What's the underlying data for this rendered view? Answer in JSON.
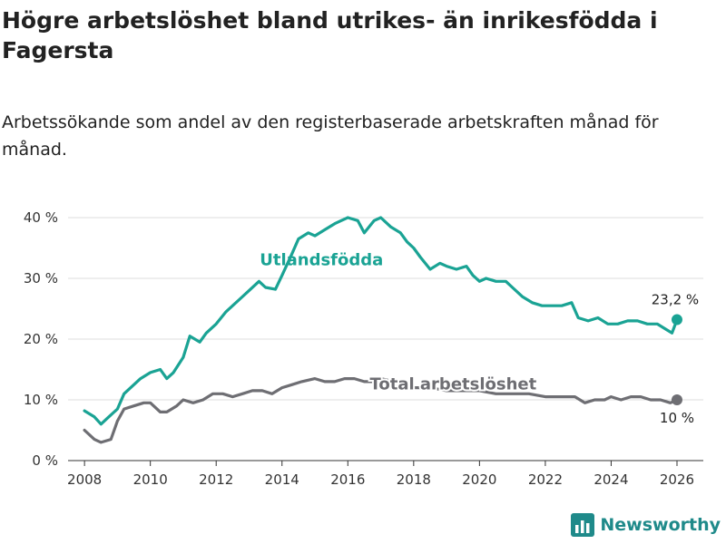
{
  "header": {
    "title": "Högre arbetslöshet bland utrikes- än inrikesfödda i Fagersta",
    "subtitle": "Arbetssökande som andel av den registerbaserade arbetskraften månad för månad."
  },
  "footer": {
    "brand": "Newsworthy",
    "logo_icon": "bar-chart-logo-icon"
  },
  "colors": {
    "foreign": "#1aa394",
    "total": "#6e6e73",
    "axis": "#333333",
    "grid": "#dddddd",
    "brand": "#1f8a8a"
  },
  "chart_data": {
    "type": "line",
    "title": "Högre arbetslöshet bland utrikes- än inrikesfödda i Fagersta",
    "subtitle": "Arbetssökande som andel av den registerbaserade arbetskraften månad för månad.",
    "xlabel": "",
    "ylabel": "",
    "xlim": [
      2007.5,
      2026.8
    ],
    "ylim": [
      0,
      40
    ],
    "y_ticks": [
      0,
      10,
      20,
      30,
      40
    ],
    "y_tick_labels": [
      "0 %",
      "10 %",
      "20 %",
      "30 %",
      "40 %"
    ],
    "x_ticks": [
      2008,
      2010,
      2012,
      2014,
      2016,
      2018,
      2020,
      2022,
      2024,
      2026
    ],
    "x_tick_labels": [
      "2008",
      "2010",
      "2012",
      "2014",
      "2016",
      "2018",
      "2020",
      "2022",
      "2024",
      "2026"
    ],
    "grid": true,
    "series": [
      {
        "name": "Utlandsfödda",
        "color": "#1aa394",
        "end_label": "23,2 %",
        "x": [
          2008.0,
          2008.3,
          2008.5,
          2008.7,
          2009.0,
          2009.2,
          2009.5,
          2009.7,
          2010.0,
          2010.3,
          2010.5,
          2010.7,
          2011.0,
          2011.2,
          2011.5,
          2011.7,
          2012.0,
          2012.3,
          2012.5,
          2012.7,
          2013.0,
          2013.3,
          2013.5,
          2013.8,
          2014.0,
          2014.3,
          2014.5,
          2014.8,
          2015.0,
          2015.3,
          2015.6,
          2015.8,
          2016.0,
          2016.3,
          2016.5,
          2016.8,
          2017.0,
          2017.3,
          2017.6,
          2017.8,
          2018.0,
          2018.2,
          2018.5,
          2018.8,
          2019.0,
          2019.3,
          2019.6,
          2019.8,
          2020.0,
          2020.2,
          2020.5,
          2020.8,
          2021.0,
          2021.3,
          2021.6,
          2021.9,
          2022.2,
          2022.5,
          2022.8,
          2023.0,
          2023.3,
          2023.6,
          2023.9,
          2024.2,
          2024.5,
          2024.8,
          2025.1,
          2025.4,
          2025.7,
          2025.85,
          2026.0
        ],
        "values": [
          8.2,
          7.2,
          6.0,
          7.0,
          8.5,
          11.0,
          12.5,
          13.5,
          14.5,
          15.0,
          13.5,
          14.5,
          17.0,
          20.5,
          19.5,
          21.0,
          22.5,
          24.5,
          25.5,
          26.5,
          28.0,
          29.5,
          28.5,
          28.2,
          30.5,
          34.0,
          36.5,
          37.5,
          37.0,
          38.0,
          39.0,
          39.5,
          40.0,
          39.5,
          37.5,
          39.5,
          40.0,
          38.5,
          37.5,
          36.0,
          35.0,
          33.5,
          31.5,
          32.5,
          32.0,
          31.5,
          32.0,
          30.5,
          29.5,
          30.0,
          29.5,
          29.5,
          28.5,
          27.0,
          26.0,
          25.5,
          25.5,
          25.5,
          26.0,
          23.5,
          23.0,
          23.5,
          22.5,
          22.5,
          23.0,
          23.0,
          22.5,
          22.5,
          21.5,
          21.0,
          23.2
        ]
      },
      {
        "name": "Total arbetslöshet",
        "color": "#6e6e73",
        "end_label": "10 %",
        "x": [
          2008.0,
          2008.3,
          2008.5,
          2008.8,
          2009.0,
          2009.2,
          2009.5,
          2009.8,
          2010.0,
          2010.3,
          2010.5,
          2010.8,
          2011.0,
          2011.3,
          2011.6,
          2011.9,
          2012.2,
          2012.5,
          2012.8,
          2013.1,
          2013.4,
          2013.7,
          2014.0,
          2014.3,
          2014.6,
          2015.0,
          2015.3,
          2015.6,
          2015.9,
          2016.2,
          2016.5,
          2016.8,
          2017.0,
          2017.4,
          2017.8,
          2018.0,
          2018.5,
          2019.0,
          2019.5,
          2020.0,
          2020.5,
          2021.0,
          2021.5,
          2022.0,
          2022.3,
          2022.6,
          2022.9,
          2023.2,
          2023.5,
          2023.8,
          2024.0,
          2024.3,
          2024.6,
          2024.9,
          2025.2,
          2025.5,
          2025.8,
          2026.0
        ],
        "values": [
          5.0,
          3.5,
          3.0,
          3.5,
          6.5,
          8.5,
          9.0,
          9.5,
          9.5,
          8.0,
          8.0,
          9.0,
          10.0,
          9.5,
          10.0,
          11.0,
          11.0,
          10.5,
          11.0,
          11.5,
          11.5,
          11.0,
          12.0,
          12.5,
          13.0,
          13.5,
          13.0,
          13.0,
          13.5,
          13.5,
          13.0,
          13.0,
          13.5,
          13.0,
          12.5,
          12.0,
          12.0,
          11.5,
          11.5,
          11.5,
          11.0,
          11.0,
          11.0,
          10.5,
          10.5,
          10.5,
          10.5,
          9.5,
          10.0,
          10.0,
          10.5,
          10.0,
          10.5,
          10.5,
          10.0,
          10.0,
          9.5,
          10.0
        ]
      }
    ]
  }
}
